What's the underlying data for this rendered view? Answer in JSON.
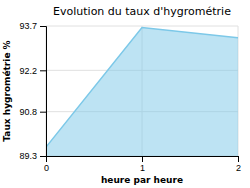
{
  "chart_data": {
    "type": "area",
    "title": "Evolution du taux d'hygrométrie",
    "xlabel": "heure par heure",
    "ylabel": "Taux hygrométrie %",
    "x": [
      0,
      1,
      2
    ],
    "values": [
      89.6,
      93.65,
      93.3
    ],
    "xlim": [
      0,
      2
    ],
    "ylim": [
      89.3,
      93.7
    ],
    "xticks": [
      0,
      1,
      2
    ],
    "yticks": [
      89.3,
      90.8,
      92.2,
      93.7
    ],
    "color": "#7cc8e8",
    "grid": true
  }
}
